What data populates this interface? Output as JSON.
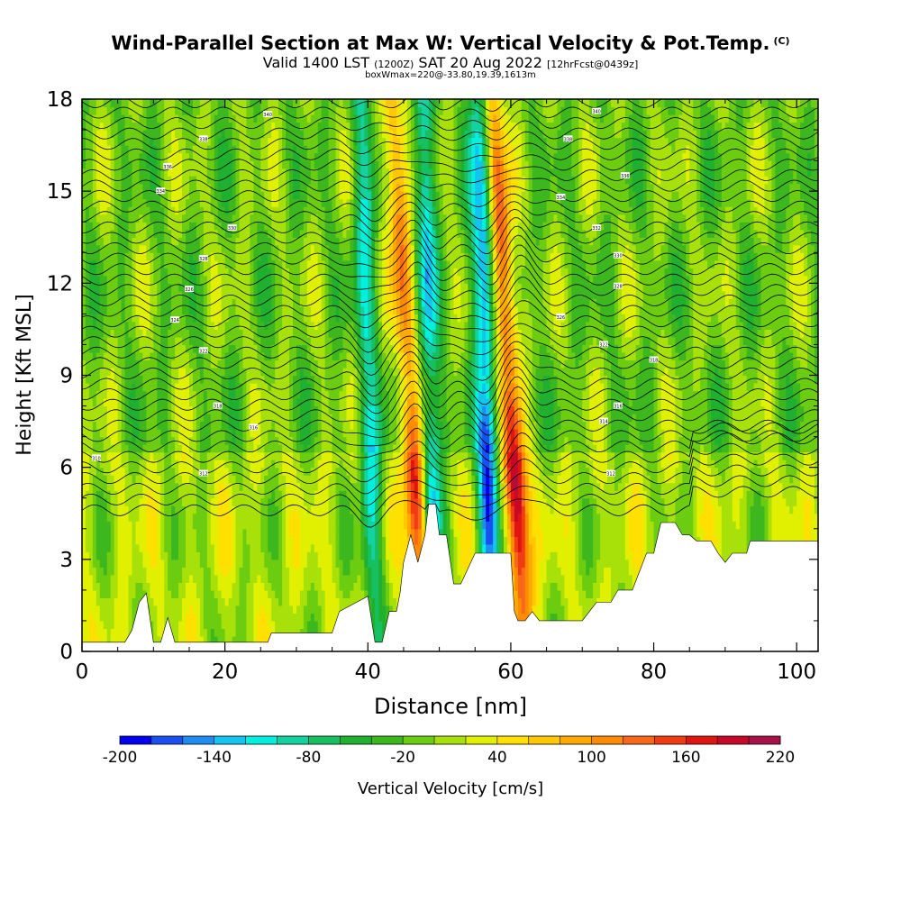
{
  "chart_data": {
    "type": "heatmap",
    "title": "Wind-Parallel Section at Max W: Vertical Velocity & Pot.Temp.",
    "title_mark": "(C)",
    "subtitle_main": "Valid 1400 LST",
    "subtitle_z": "(1200Z)",
    "subtitle_date": "SAT 20 Aug 2022",
    "subtitle_fcst": "[12hrFcst@0439z]",
    "note": "boxWmax=220@-33.80,19.39,1613m",
    "xlabel": "Distance [nm]",
    "ylabel": "Height [Kft MSL]",
    "xlim": [
      0,
      103
    ],
    "ylim": [
      0,
      18
    ],
    "xticks": [
      0,
      20,
      40,
      60,
      80,
      100
    ],
    "yticks": [
      0,
      3,
      6,
      9,
      12,
      15,
      18
    ],
    "colorbar": {
      "label": "Vertical Velocity [cm/s]",
      "min": -200,
      "max": 220,
      "step": 20,
      "tick_values": [
        -200,
        -140,
        -80,
        -20,
        40,
        100,
        160,
        220
      ],
      "colors": [
        "#0000ee",
        "#1a50f0",
        "#1e8cf0",
        "#14c4f0",
        "#00f0e0",
        "#14d2a0",
        "#16c060",
        "#20b030",
        "#3cb81e",
        "#6ccc10",
        "#a8e00a",
        "#e0f000",
        "#ffe000",
        "#ffc800",
        "#ffaa00",
        "#ff8c00",
        "#f86818",
        "#f03c10",
        "#e01410",
        "#c80828",
        "#a81048"
      ]
    },
    "features": [
      {
        "kind": "downdraft",
        "x": 40.5,
        "w_min": -120
      },
      {
        "kind": "updraft",
        "x": 47,
        "w_max": 190
      },
      {
        "kind": "downdraft",
        "x": 49,
        "w_min": -150
      },
      {
        "kind": "downdraft",
        "x": 57,
        "w_min": -200
      },
      {
        "kind": "updraft",
        "x": 61,
        "w_max": 220
      }
    ],
    "terrain_kft": [
      [
        0,
        0.3
      ],
      [
        6,
        0.3
      ],
      [
        7,
        0.7
      ],
      [
        8,
        1.6
      ],
      [
        9,
        1.9
      ],
      [
        10,
        0.3
      ],
      [
        11,
        0.3
      ],
      [
        12,
        1.1
      ],
      [
        13,
        0.3
      ],
      [
        26,
        0.3
      ],
      [
        26.5,
        0.6
      ],
      [
        35,
        0.6
      ],
      [
        36,
        1.3
      ],
      [
        40,
        1.8
      ],
      [
        41,
        0.3
      ],
      [
        42,
        0.3
      ],
      [
        43,
        1.3
      ],
      [
        44,
        1.3
      ],
      [
        44.5,
        1.9
      ],
      [
        45,
        2.9
      ],
      [
        46,
        3.8
      ],
      [
        47,
        2.9
      ],
      [
        48,
        3.8
      ],
      [
        48.5,
        4.8
      ],
      [
        49.5,
        4.8
      ],
      [
        50,
        3.8
      ],
      [
        51,
        3.8
      ],
      [
        52,
        2.2
      ],
      [
        53,
        2.2
      ],
      [
        55,
        3.2
      ],
      [
        60,
        3.2
      ],
      [
        60.5,
        1.3
      ],
      [
        61,
        1.0
      ],
      [
        62,
        1.0
      ],
      [
        63,
        1.3
      ],
      [
        64,
        1.0
      ],
      [
        70,
        1.0
      ],
      [
        71,
        1.3
      ],
      [
        72,
        1.6
      ],
      [
        74,
        1.6
      ],
      [
        75,
        2.0
      ],
      [
        77,
        2.0
      ],
      [
        78,
        2.6
      ],
      [
        79,
        3.2
      ],
      [
        80,
        3.2
      ],
      [
        81,
        4.2
      ],
      [
        83,
        4.2
      ],
      [
        84,
        3.8
      ],
      [
        85,
        3.8
      ],
      [
        86,
        3.6
      ],
      [
        88,
        3.6
      ],
      [
        89,
        3.2
      ],
      [
        90,
        2.9
      ],
      [
        91,
        3.2
      ],
      [
        93,
        3.2
      ],
      [
        93.5,
        3.6
      ],
      [
        103,
        3.6
      ]
    ],
    "theta_labels": [
      {
        "x": 2,
        "y": 6.3,
        "text": "310"
      },
      {
        "x": 17,
        "y": 5.8,
        "text": "312"
      },
      {
        "x": 24,
        "y": 7.3,
        "text": "316"
      },
      {
        "x": 19,
        "y": 8.0,
        "text": "318"
      },
      {
        "x": 17,
        "y": 9.8,
        "text": "322"
      },
      {
        "x": 13,
        "y": 10.8,
        "text": "324"
      },
      {
        "x": 15,
        "y": 11.8,
        "text": "326"
      },
      {
        "x": 17,
        "y": 12.8,
        "text": "328"
      },
      {
        "x": 21,
        "y": 13.8,
        "text": "330"
      },
      {
        "x": 11,
        "y": 15.0,
        "text": "334"
      },
      {
        "x": 12,
        "y": 15.8,
        "text": "336"
      },
      {
        "x": 17,
        "y": 16.7,
        "text": "338"
      },
      {
        "x": 26,
        "y": 17.5,
        "text": "340"
      },
      {
        "x": 67,
        "y": 10.9,
        "text": "326"
      },
      {
        "x": 73,
        "y": 10.0,
        "text": "322"
      },
      {
        "x": 80,
        "y": 9.5,
        "text": "318"
      },
      {
        "x": 75,
        "y": 8.0,
        "text": "316"
      },
      {
        "x": 73,
        "y": 7.5,
        "text": "314"
      },
      {
        "x": 74,
        "y": 5.8,
        "text": "312"
      },
      {
        "x": 75,
        "y": 11.9,
        "text": "328"
      },
      {
        "x": 75,
        "y": 12.9,
        "text": "330"
      },
      {
        "x": 72,
        "y": 13.8,
        "text": "332"
      },
      {
        "x": 67,
        "y": 14.8,
        "text": "334"
      },
      {
        "x": 76,
        "y": 15.5,
        "text": "336"
      },
      {
        "x": 68,
        "y": 16.7,
        "text": "338"
      },
      {
        "x": 72,
        "y": 17.6,
        "text": "340"
      }
    ]
  }
}
